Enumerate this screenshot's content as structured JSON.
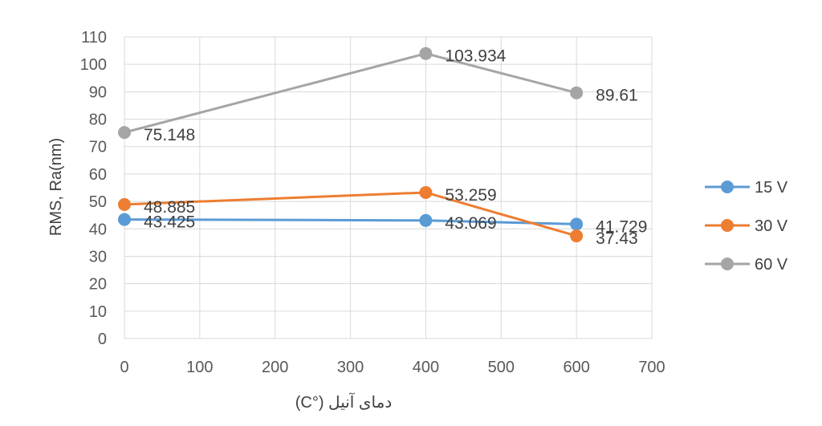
{
  "chart_data": {
    "type": "line",
    "title": "",
    "xlabel": "دمای آنیل  (°C)",
    "ylabel": "RMS, Ra(nm)",
    "xlim": [
      0,
      700
    ],
    "ylim": [
      0,
      110
    ],
    "xticks": [
      0,
      100,
      200,
      300,
      400,
      500,
      600,
      700
    ],
    "yticks": [
      0,
      10,
      20,
      30,
      40,
      50,
      60,
      70,
      80,
      90,
      100,
      110
    ],
    "grid": true,
    "legend_position": "right",
    "x": [
      0,
      400,
      600
    ],
    "series": [
      {
        "name": "15 V",
        "color": "#5b9bd5",
        "values": [
          43.425,
          43.069,
          41.729
        ],
        "labels": [
          "43.425",
          "43.069",
          "41.729"
        ]
      },
      {
        "name": "30 V",
        "color": "#ed7d31",
        "values": [
          48.885,
          53.259,
          37.43
        ],
        "labels": [
          "48.885",
          "53.259",
          "37.43"
        ]
      },
      {
        "name": "60 V",
        "color": "#a5a5a5",
        "values": [
          75.148,
          103.934,
          89.61
        ],
        "labels": [
          "75.148",
          "103.934",
          "89.61"
        ]
      }
    ]
  }
}
